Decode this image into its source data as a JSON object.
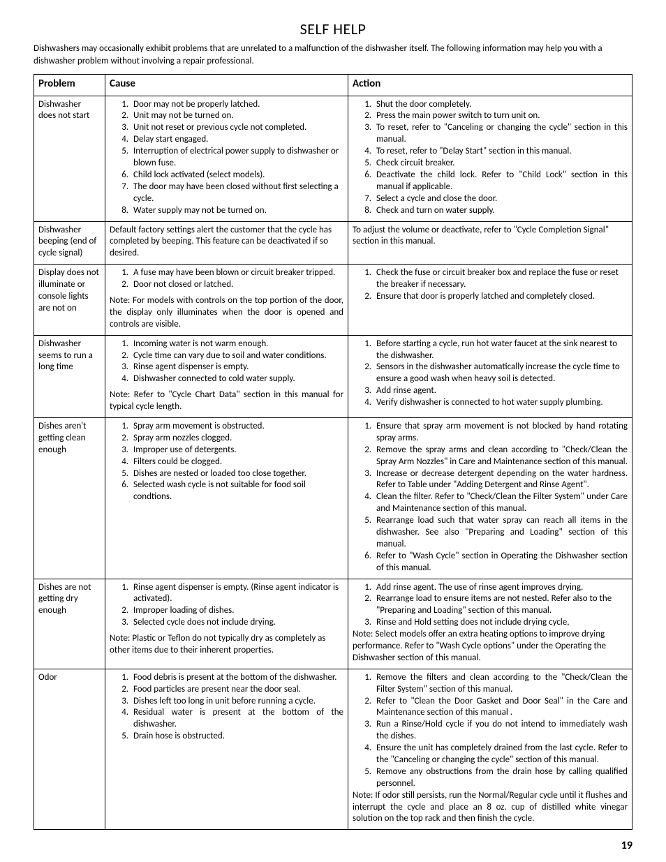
{
  "title": "SELF HELP",
  "intro": "Dishwashers may occasionally exhibit problems that are unrelated to a malfunction of the dishwasher itself. The following information may help you with a dishwasher problem without involving a repair professional.",
  "page_number": "19",
  "headers": {
    "problem": "Problem",
    "cause": "Cause",
    "action": "Action"
  },
  "rows": [
    {
      "problem": "Dishwasher does not start",
      "cause_items": [
        "Door may not be properly latched.",
        "Unit may not be turned on.",
        "Unit not reset or previous cycle not completed.",
        "Delay start engaged.",
        "Interruption of electrical power supply to dishwasher or blown fuse.",
        "Child lock activated (select models).",
        "The door may have been closed without first selecting a cycle.",
        "Water supply may not be turned on."
      ],
      "action_items": [
        "Shut the door completely.",
        "Press the main power switch to turn unit on.",
        "To reset, refer to \"Canceling or changing the cycle\" section in this manual.",
        "To reset, refer to \"Delay Start\" section in this manual.",
        "Check circuit breaker.",
        "Deactivate the child lock. Refer to \"Child Lock\" section in this manual if applicable.",
        "Select a cycle and close the door.",
        "Check and turn on water supply."
      ],
      "action_justify": true
    },
    {
      "problem": "Dishwasher beeping (end of cycle signal)",
      "cause_text": "Default factory settings alert the customer that the cycle has completed by beeping. This feature can be deactivated if so desired.",
      "action_text": "To adjust the volume or deactivate, refer to \"Cycle Completion Signal\" section in this manual."
    },
    {
      "problem": "Display does not illuminate or console lights are not on",
      "cause_items": [
        "A fuse may have been blown or circuit breaker tripped.",
        "Door not closed or latched."
      ],
      "cause_note": "Note: For models with controls on the top portion of the door, the display only illuminates when the door is opened and controls are visible.",
      "cause_justify": true,
      "action_items": [
        "Check the fuse or circuit breaker box and replace the fuse or reset the breaker if necessary.",
        "Ensure that door is properly latched and completely closed."
      ]
    },
    {
      "problem": "Dishwasher seems to run a long time",
      "cause_items": [
        "Incoming water is not warm enough.",
        "Cycle time can vary due to soil and water conditions.",
        "Rinse agent dispenser is empty.",
        "Dishwasher connected to cold water supply."
      ],
      "cause_note": "Note: Refer to \"Cycle Chart Data\" section in this manual for typical cycle length.",
      "cause_justify": true,
      "action_items": [
        "Before starting a cycle, run hot water faucet at the sink nearest to the dishwasher.",
        "Sensors in the dishwasher automatically increase the cycle time to ensure a good wash when heavy soil is detected.",
        "Add rinse agent.",
        "Verify dishwasher is connected to hot water supply plumbing."
      ]
    },
    {
      "problem": "Dishes aren't getting clean enough",
      "cause_items": [
        "Spray arm movement is obstructed.",
        "Spray arm nozzles clogged.",
        "Improper use of detergents.",
        "Filters could be clogged.",
        "Dishes are nested or loaded too close together.",
        "Selected wash cycle is not suitable for food soil condtions."
      ],
      "action_items": [
        "Ensure that spray arm movement is not blocked by hand rotating spray arms.",
        "Remove the spray arms and clean according to \"Check/Clean the Spray Arm Nozzles\" in Care and Maintenance section of this manual.",
        "Increase or decrease detergent depending on the water hardness. Refer to Table under \"Adding Detergent and Rinse Agent\".",
        "Clean the filter. Refer to \"Check/Clean the Filter System\" under Care and Maintenance section of this manual.",
        "Rearrange load such that water spray can reach all items in the dishwasher. See also \"Preparing and Loading\" section of this manual.",
        "Refer to \"Wash Cycle\" section in Operating the Dishwasher section of this manual."
      ],
      "action_justify": true
    },
    {
      "problem": "Dishes are not getting dry enough",
      "cause_items": [
        "Rinse agent dispenser is empty. (Rinse agent indicator is activated).",
        "Improper loading of dishes.",
        "Selected cycle does not include drying."
      ],
      "cause_note": "Note: Plastic or Teflon do not typically dry as  completely as other items due to their inherent properties.",
      "action_items": [
        "Add rinse agent. The use of rinse agent improves drying.",
        "Rearrange load to ensure items are not nested. Refer also to the \"Preparing and Loading\" section of this manual.",
        "Rinse and Hold setting does not include drying cycle,"
      ],
      "action_note": "Note: Select models offer an extra heating options to improve drying performance. Refer to \"Wash Cycle options\"  under the Operating the Dishwasher section of this manual."
    },
    {
      "problem": "Odor",
      "cause_items": [
        "Food debris is present at the bottom of the dishwasher.",
        "Food particles are present near the door seal.",
        "Dishes left too long in unit before running a cycle.",
        "Residual water is present at the bottom of the dishwasher.",
        "Drain hose is obstructed."
      ],
      "cause_justify": true,
      "action_items": [
        "Remove the filters and clean according to the \"Check/Clean the Filter System\" section of this manual.",
        "Refer to \"Clean the Door Gasket and Door Seal\" in the Care and Maintenance section of this manual .",
        "Run a Rinse/Hold cycle if you do not intend to immediately wash the dishes.",
        "Ensure the unit has completely drained from the last cycle. Refer to the \"Canceling or changing the cycle\" section of this manual.",
        "Remove any obstructions from the drain hose by calling qualified personnel."
      ],
      "action_note": "Note: If odor still persists, run the Normal/Regular cycle until it flushes and interrupt the cycle and place an 8 oz. cup of distilled white vinegar solution on the top rack and then finish the cycle.",
      "action_justify": true
    }
  ]
}
